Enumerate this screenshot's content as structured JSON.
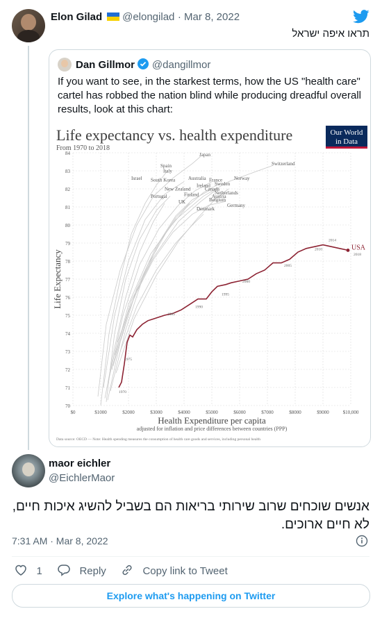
{
  "top_tweet": {
    "author_name": "Elon Gilad",
    "author_handle": "@elongilad",
    "date": "· Mar 8, 2022",
    "text": "תראו איפה ישראל"
  },
  "quoted_tweet": {
    "author_name": "Dan Gillmor",
    "author_handle": "@dangillmor",
    "text": "If you want to see, in the starkest terms, how the US \"health care\" cartel has robbed the nation blind while producing dreadful overall results, look at this chart:"
  },
  "chart_data": {
    "type": "line",
    "title": "Life expectancy vs. health expenditure",
    "subtitle": "From 1970 to 2018",
    "brand": [
      "Our World",
      "in Data"
    ],
    "xlabel": "Health Expenditure per capita",
    "xlabel_sub": "adjusted for inflation and price differences between countries (PPP)",
    "ylabel": "Life Expectancy",
    "xlim": [
      0,
      10000
    ],
    "ylim": [
      70,
      84
    ],
    "x_ticks": [
      0,
      1000,
      2000,
      3000,
      4000,
      5000,
      6000,
      7000,
      8000,
      9000,
      10000
    ],
    "x_tick_labels": [
      "$0",
      "$1000",
      "$2000",
      "$3000",
      "$4000",
      "$5000",
      "$6000",
      "$7000",
      "$8000",
      "$9000",
      "$10,000"
    ],
    "y_ticks": [
      70,
      71,
      72,
      73,
      74,
      75,
      76,
      77,
      78,
      79,
      80,
      81,
      82,
      83,
      84
    ],
    "grid": true,
    "highlight_series": {
      "name": "USA",
      "color": "#8c2232",
      "points": [
        [
          1650,
          71.0
        ],
        [
          1750,
          71.3
        ],
        [
          1850,
          72.3
        ],
        [
          1950,
          73.5
        ],
        [
          2050,
          73.9
        ],
        [
          2150,
          73.8
        ],
        [
          2300,
          74.2
        ],
        [
          2500,
          74.5
        ],
        [
          2700,
          74.7
        ],
        [
          2900,
          74.8
        ],
        [
          3100,
          74.9
        ],
        [
          3300,
          75.0
        ],
        [
          3600,
          75.1
        ],
        [
          3900,
          75.3
        ],
        [
          4200,
          75.6
        ],
        [
          4500,
          75.9
        ],
        [
          4800,
          75.9
        ],
        [
          5000,
          76.3
        ],
        [
          5200,
          76.6
        ],
        [
          5500,
          76.7
        ],
        [
          5700,
          76.8
        ],
        [
          6000,
          76.9
        ],
        [
          6300,
          77.0
        ],
        [
          6600,
          77.3
        ],
        [
          6900,
          77.5
        ],
        [
          7200,
          77.9
        ],
        [
          7500,
          77.9
        ],
        [
          7800,
          78.1
        ],
        [
          8100,
          78.5
        ],
        [
          8400,
          78.7
        ],
        [
          8700,
          78.8
        ],
        [
          9000,
          78.9
        ],
        [
          9300,
          78.8
        ],
        [
          9600,
          78.7
        ],
        [
          9900,
          78.6
        ]
      ],
      "year_labels": [
        {
          "label": "1970",
          "x": 1650,
          "y": 70.7
        },
        {
          "label": "1975",
          "x": 1850,
          "y": 72.5
        },
        {
          "label": "1985",
          "x": 3400,
          "y": 75.0
        },
        {
          "label": "1990",
          "x": 4400,
          "y": 75.4
        },
        {
          "label": "1995",
          "x": 5350,
          "y": 76.1
        },
        {
          "label": "2000",
          "x": 6100,
          "y": 76.8
        },
        {
          "label": "2005",
          "x": 7600,
          "y": 77.7
        },
        {
          "label": "2010",
          "x": 8700,
          "y": 78.6
        },
        {
          "label": "2014",
          "x": 9200,
          "y": 79.1
        },
        {
          "label": "2018",
          "x": 10100,
          "y": 78.3
        }
      ]
    },
    "country_labels": [
      {
        "label": "Japan",
        "x": 4550,
        "y": 83.8
      },
      {
        "label": "Switzerland",
        "x": 7150,
        "y": 83.3
      },
      {
        "label": "Spain",
        "x": 3150,
        "y": 83.2
      },
      {
        "label": "Italy",
        "x": 3250,
        "y": 82.9
      },
      {
        "label": "Israel",
        "x": 2100,
        "y": 82.5
      },
      {
        "label": "South Korea",
        "x": 2800,
        "y": 82.4
      },
      {
        "label": "Australia",
        "x": 4150,
        "y": 82.5
      },
      {
        "label": "France",
        "x": 4900,
        "y": 82.4
      },
      {
        "label": "Norway",
        "x": 5800,
        "y": 82.5
      },
      {
        "label": "Sweden",
        "x": 5100,
        "y": 82.2
      },
      {
        "label": "Ireland",
        "x": 4450,
        "y": 82.1
      },
      {
        "label": "Canada",
        "x": 4750,
        "y": 81.9
      },
      {
        "label": "New Zealand",
        "x": 3300,
        "y": 81.9
      },
      {
        "label": "Netherlands",
        "x": 5100,
        "y": 81.7
      },
      {
        "label": "Finland",
        "x": 4000,
        "y": 81.6
      },
      {
        "label": "Austria",
        "x": 5000,
        "y": 81.5
      },
      {
        "label": "Portugal",
        "x": 2800,
        "y": 81.5
      },
      {
        "label": "Belgium",
        "x": 4900,
        "y": 81.3
      },
      {
        "label": "UK",
        "x": 3800,
        "y": 81.2
      },
      {
        "label": "Germany",
        "x": 5550,
        "y": 81.0
      },
      {
        "label": "Denmark",
        "x": 4450,
        "y": 80.8
      }
    ],
    "source_note": "Data source: OECD — Note: Health spending measures the consumption of health care goods and services, including personal health"
  },
  "reply_tweet": {
    "author_name": "maor eichler",
    "author_handle": "@EichlerMaor",
    "text": "אנשים שוכחים שרוב שירותי בריאות הם בשביל להשיג איכות חיים, לא חיים ארוכים.",
    "timestamp": "7:31 AM · Mar 8, 2022",
    "like_count": "1",
    "reply_label": "Reply",
    "copy_link_label": "Copy link to Tweet",
    "explore_label": "Explore what's happening on Twitter"
  },
  "colors": {
    "twitter_blue": "#1d9bf0",
    "usa_line": "#8c2232",
    "others_line": "#c9c9c9"
  }
}
